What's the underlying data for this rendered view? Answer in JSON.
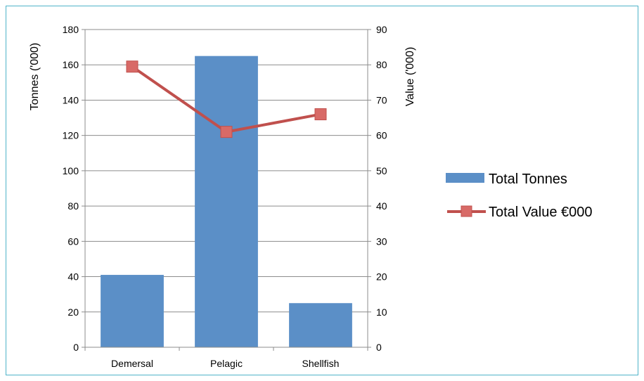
{
  "chart_data": {
    "type": "bar",
    "categories": [
      "Demersal",
      "Pelagic",
      "Shellfish"
    ],
    "series": [
      {
        "name": "Total Tonnes",
        "type": "bar",
        "axis": "left",
        "color": "#5b8fc7",
        "values": [
          41,
          165,
          25
        ]
      },
      {
        "name": "Total Value €000",
        "type": "line",
        "axis": "right",
        "color": "#c0504d",
        "values": [
          79.5,
          61,
          66
        ]
      }
    ],
    "ylabel": "Tonnes ('000)",
    "y2label": "Value ('000)",
    "ylim": [
      0,
      180
    ],
    "y2lim": [
      0,
      90
    ],
    "yticks": [
      0,
      20,
      40,
      60,
      80,
      100,
      120,
      140,
      160,
      180
    ],
    "y2ticks": [
      0,
      10,
      20,
      30,
      40,
      50,
      60,
      70,
      80,
      90
    ],
    "grid": true,
    "legend_position": "right"
  }
}
